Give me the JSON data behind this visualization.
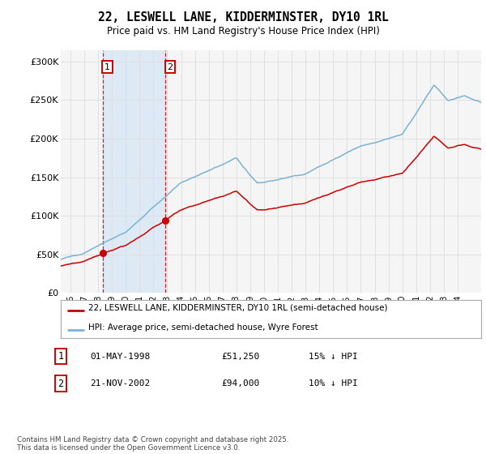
{
  "title": "22, LESWELL LANE, KIDDERMINSTER, DY10 1RL",
  "subtitle": "Price paid vs. HM Land Registry's House Price Index (HPI)",
  "legend_line1": "22, LESWELL LANE, KIDDERMINSTER, DY10 1RL (semi-detached house)",
  "legend_line2": "HPI: Average price, semi-detached house, Wyre Forest",
  "footer": "Contains HM Land Registry data © Crown copyright and database right 2025.\nThis data is licensed under the Open Government Licence v3.0.",
  "transaction1_date": "01-MAY-1998",
  "transaction1_price": "£51,250",
  "transaction1_hpi": "15% ↓ HPI",
  "transaction1_label": "1",
  "transaction2_date": "21-NOV-2002",
  "transaction2_price": "£94,000",
  "transaction2_hpi": "10% ↓ HPI",
  "transaction2_label": "2",
  "red_color": "#cc0000",
  "blue_color": "#7ab3d4",
  "shade_color": "#ddeaf5",
  "vline_color": "#cc0000",
  "ylim": [
    0,
    315000
  ],
  "yticks": [
    0,
    50000,
    100000,
    150000,
    200000,
    250000,
    300000
  ],
  "ytick_labels": [
    "£0",
    "£50K",
    "£100K",
    "£150K",
    "£200K",
    "£250K",
    "£300K"
  ],
  "xmin": 1995.3,
  "xmax": 2025.7,
  "t1_x": 1998.33,
  "t2_x": 2002.88,
  "t1_price": 51250,
  "t2_price": 94000,
  "grid_color": "#dddddd",
  "bg_color": "#f5f5f5"
}
